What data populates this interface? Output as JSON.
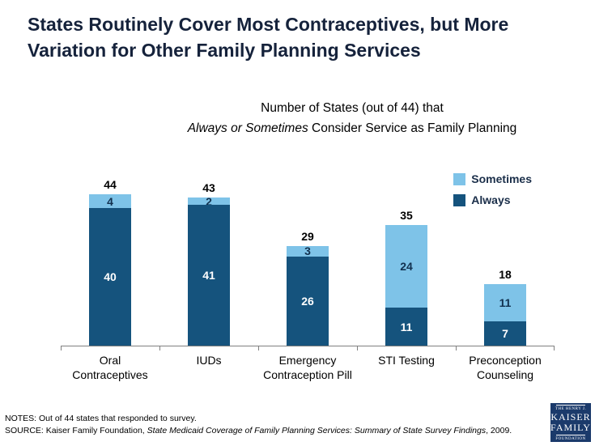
{
  "colors": {
    "title": "#15223B",
    "always": "#15537D",
    "sometimes": "#7EC3E8",
    "logo_bg": "#1B3A6B"
  },
  "title": {
    "line1": "States Routinely Cover Most Contraceptives, but More",
    "line2": "Variation for Other Family Planning Services"
  },
  "subtitle": {
    "line1": "Number of States (out of 44) that",
    "line2_italic": "Always or Sometimes",
    "line2_rest": " Consider Service as Family Planning"
  },
  "chart_data": {
    "type": "stacked-bar",
    "title": "Number of States (out of 44) that Always or Sometimes Consider Service as Family Planning",
    "categories": [
      "Oral Contraceptives",
      "IUDs",
      "Emergency Contraception Pill",
      "STI Testing",
      "Preconception Counseling"
    ],
    "series": [
      {
        "name": "Always",
        "color": "#15537D",
        "values": [
          40,
          41,
          26,
          11,
          7
        ]
      },
      {
        "name": "Sometimes",
        "color": "#7EC3E8",
        "values": [
          4,
          2,
          3,
          24,
          11
        ]
      }
    ],
    "totals": [
      44,
      43,
      29,
      35,
      18
    ],
    "ylim": [
      0,
      44
    ],
    "grid": "off",
    "legend_position": "top-right",
    "legend": {
      "sometimes": "Sometimes",
      "always": "Always"
    }
  },
  "footer": {
    "notes": "NOTES: Out of 44 states that responded to survey.",
    "source_prefix": "SOURCE: Kaiser Family Foundation, ",
    "source_italic": "State Medicaid Coverage of Family Planning Services:  Summary of State Survey Findings",
    "source_suffix": ", 2009."
  },
  "logo": {
    "line1": "THE HENRY J.",
    "line2": "KAISER",
    "line3": "FAMILY",
    "line4": "FOUNDATION"
  }
}
